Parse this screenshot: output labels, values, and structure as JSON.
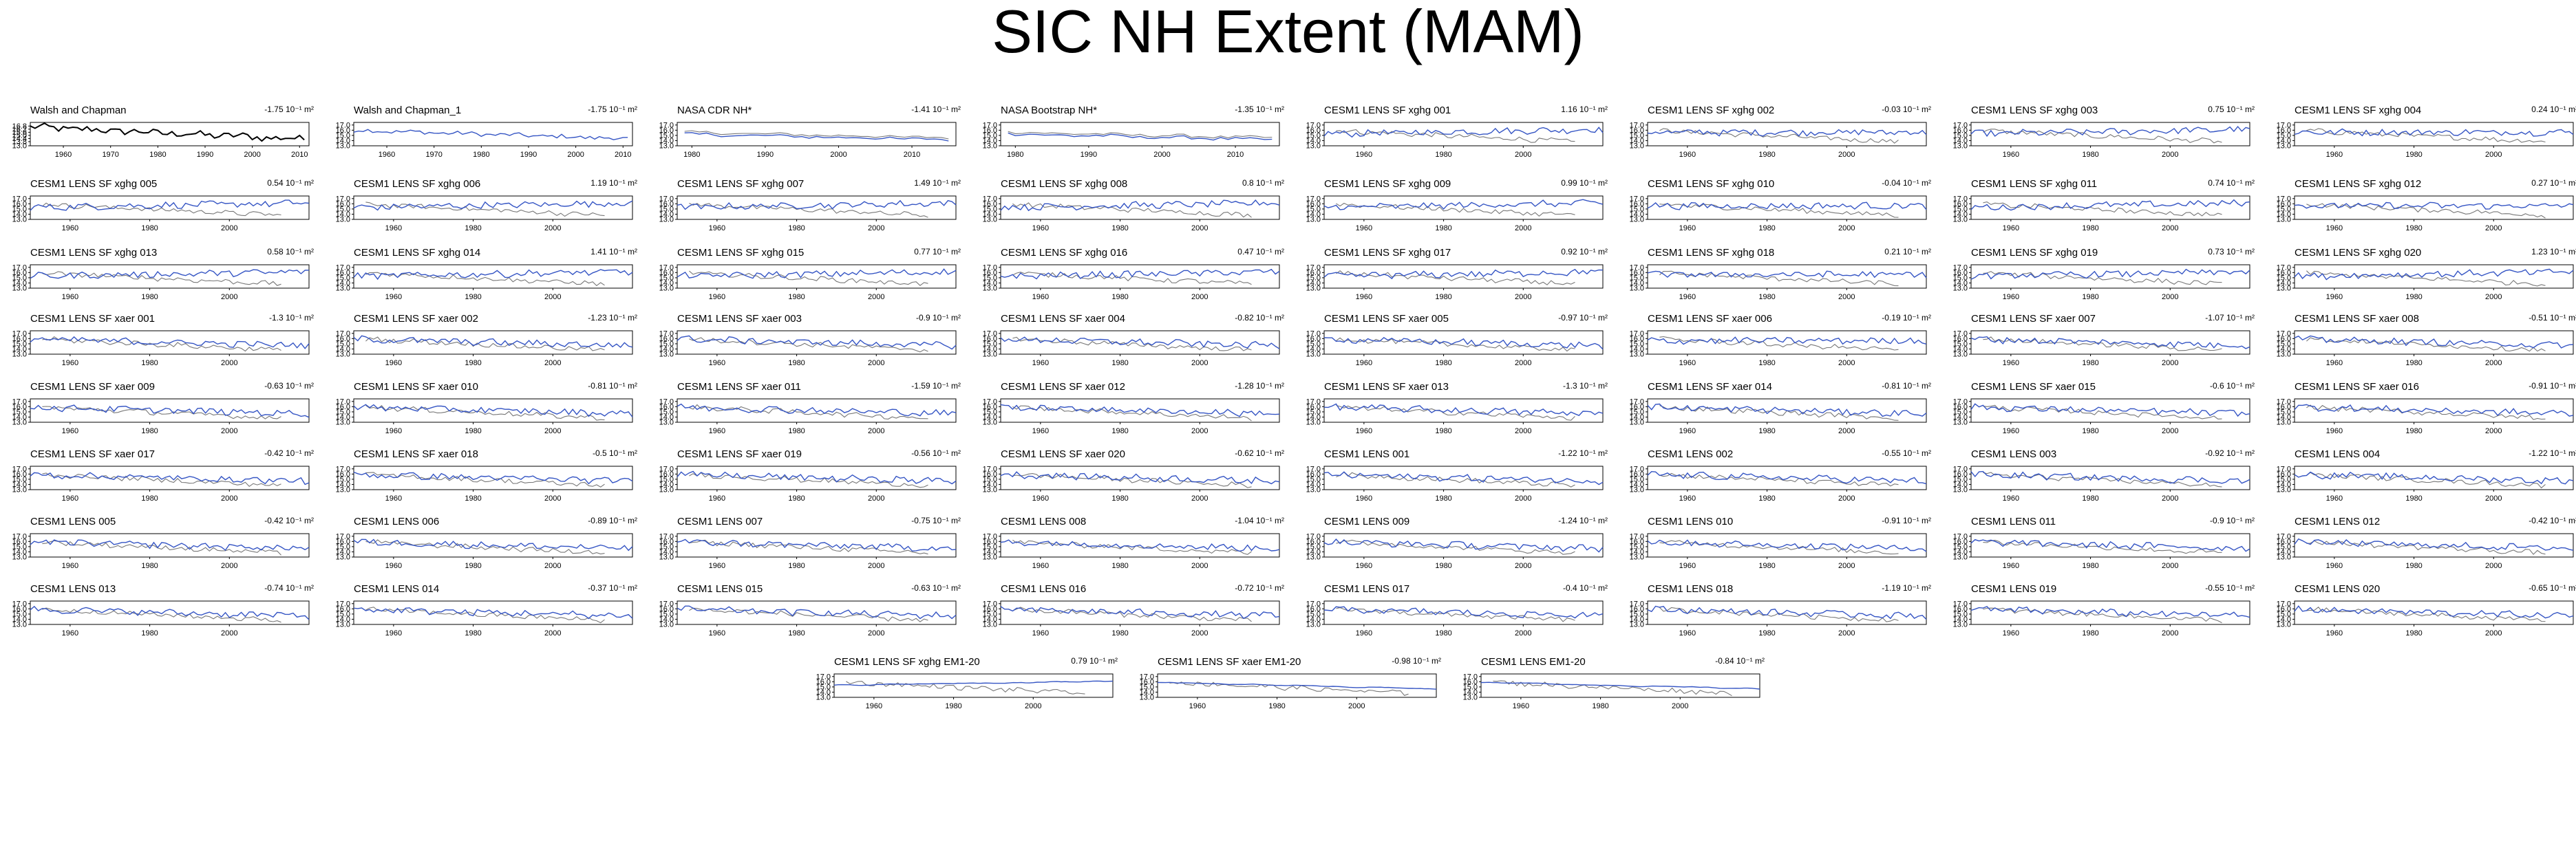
{
  "title": "SIC NH Extent (MAM)",
  "legend_colors": {
    "model": "#3555c4",
    "observed": "#777777",
    "obs_panel": "#000000"
  },
  "trend_unit": "10⁻¹ m²",
  "chart_data": {
    "type": "line",
    "y_tick_labels": [
      "13.0",
      "14.0",
      "15.0",
      "16.0",
      "17.0"
    ],
    "ylim": [
      13.0,
      17.5
    ],
    "panels": [
      {
        "title": "Walsh and Chapman",
        "trend": "-1.75",
        "xticks": [
          1960,
          1970,
          1980,
          1990,
          2000,
          2010
        ],
        "xlim": [
          1953,
          2012
        ],
        "yticks": [
          "13.0",
          "13.8",
          "14.4",
          "15.0",
          "15.6",
          "16.2",
          "16.8"
        ],
        "kind": "obs"
      },
      {
        "title": "Walsh and Chapman_1",
        "trend": "-1.75",
        "xticks": [
          1960,
          1970,
          1980,
          1990,
          2000,
          2010
        ],
        "xlim": [
          1953,
          2012
        ],
        "kind": "single"
      },
      {
        "title": "NASA CDR NH*",
        "trend": "-1.41",
        "xticks": [
          1980,
          1990,
          2000,
          2010
        ],
        "xlim": [
          1978,
          2016
        ],
        "kind": "pair"
      },
      {
        "title": "NASA Bootstrap NH*",
        "trend": "-1.35",
        "xticks": [
          1980,
          1990,
          2000,
          2010
        ],
        "xlim": [
          1978,
          2016
        ],
        "kind": "pair"
      },
      {
        "title": "CESM1 LENS SF xghg 001",
        "trend": "1.16",
        "kind": "model",
        "tr": 1
      },
      {
        "title": "CESM1 LENS SF xghg 002",
        "trend": "-0.03",
        "kind": "model",
        "tr": 0
      },
      {
        "title": "CESM1 LENS SF xghg 003",
        "trend": "0.75",
        "kind": "model",
        "tr": 1
      },
      {
        "title": "CESM1 LENS SF xghg 004",
        "trend": "0.24",
        "kind": "model",
        "tr": 0
      },
      {
        "title": "CESM1 LENS SF xghg 005",
        "trend": "0.54",
        "kind": "model",
        "tr": 1
      },
      {
        "title": "CESM1 LENS SF xghg 006",
        "trend": "1.19",
        "kind": "model",
        "tr": 1
      },
      {
        "title": "CESM1 LENS SF xghg 007",
        "trend": "1.49",
        "kind": "model",
        "tr": 1
      },
      {
        "title": "CESM1 LENS SF xghg 008",
        "trend": "0.8",
        "kind": "model",
        "tr": 1
      },
      {
        "title": "CESM1 LENS SF xghg 009",
        "trend": "0.99",
        "kind": "model",
        "tr": 1
      },
      {
        "title": "CESM1 LENS SF xghg 010",
        "trend": "-0.04",
        "kind": "model",
        "tr": 0
      },
      {
        "title": "CESM1 LENS SF xghg 011",
        "trend": "0.74",
        "kind": "model",
        "tr": 1
      },
      {
        "title": "CESM1 LENS SF xghg 012",
        "trend": "0.27",
        "kind": "model",
        "tr": 0
      },
      {
        "title": "CESM1 LENS SF xghg 013",
        "trend": "0.58",
        "kind": "model",
        "tr": 1
      },
      {
        "title": "CESM1 LENS SF xghg 014",
        "trend": "1.41",
        "kind": "model",
        "tr": 1
      },
      {
        "title": "CESM1 LENS SF xghg 015",
        "trend": "0.77",
        "kind": "model",
        "tr": 1
      },
      {
        "title": "CESM1 LENS SF xghg 016",
        "trend": "0.47",
        "kind": "model",
        "tr": 1
      },
      {
        "title": "CESM1 LENS SF xghg 017",
        "trend": "0.92",
        "kind": "model",
        "tr": 1
      },
      {
        "title": "CESM1 LENS SF xghg 018",
        "trend": "0.21",
        "kind": "model",
        "tr": 0
      },
      {
        "title": "CESM1 LENS SF xghg 019",
        "trend": "0.73",
        "kind": "model",
        "tr": 1
      },
      {
        "title": "CESM1 LENS SF xghg 020",
        "trend": "1.23",
        "kind": "model",
        "tr": 1
      },
      {
        "title": "CESM1 LENS SF xaer 001",
        "trend": "-1.3",
        "kind": "model",
        "tr": -1
      },
      {
        "title": "CESM1 LENS SF xaer 002",
        "trend": "-1.23",
        "kind": "model",
        "tr": -1
      },
      {
        "title": "CESM1 LENS SF xaer 003",
        "trend": "-0.9",
        "kind": "model",
        "tr": -1
      },
      {
        "title": "CESM1 LENS SF xaer 004",
        "trend": "-0.82",
        "kind": "model",
        "tr": -1
      },
      {
        "title": "CESM1 LENS SF xaer 005",
        "trend": "-0.97",
        "kind": "model",
        "tr": -1
      },
      {
        "title": "CESM1 LENS SF xaer 006",
        "trend": "-0.19",
        "kind": "model",
        "tr": 0
      },
      {
        "title": "CESM1 LENS SF xaer 007",
        "trend": "-1.07",
        "kind": "model",
        "tr": -1
      },
      {
        "title": "CESM1 LENS SF xaer 008",
        "trend": "-0.51",
        "kind": "model",
        "tr": -1
      },
      {
        "title": "CESM1 LENS SF xaer 009",
        "trend": "-0.63",
        "kind": "model",
        "tr": -1
      },
      {
        "title": "CESM1 LENS SF xaer 010",
        "trend": "-0.81",
        "kind": "model",
        "tr": -1
      },
      {
        "title": "CESM1 LENS SF xaer 011",
        "trend": "-1.59",
        "kind": "model",
        "tr": -1
      },
      {
        "title": "CESM1 LENS SF xaer 012",
        "trend": "-1.28",
        "kind": "model",
        "tr": -1
      },
      {
        "title": "CESM1 LENS SF xaer 013",
        "trend": "-1.3",
        "kind": "model",
        "tr": -1
      },
      {
        "title": "CESM1 LENS SF xaer 014",
        "trend": "-0.81",
        "kind": "model",
        "tr": -1
      },
      {
        "title": "CESM1 LENS SF xaer 015",
        "trend": "-0.6",
        "kind": "model",
        "tr": -1
      },
      {
        "title": "CESM1 LENS SF xaer 016",
        "trend": "-0.91",
        "kind": "model",
        "tr": -1
      },
      {
        "title": "CESM1 LENS SF xaer 017",
        "trend": "-0.42",
        "kind": "model",
        "tr": -1
      },
      {
        "title": "CESM1 LENS SF xaer 018",
        "trend": "-0.5",
        "kind": "model",
        "tr": -1
      },
      {
        "title": "CESM1 LENS SF xaer 019",
        "trend": "-0.56",
        "kind": "model",
        "tr": -1
      },
      {
        "title": "CESM1 LENS SF xaer 020",
        "trend": "-0.62",
        "kind": "model",
        "tr": -1
      },
      {
        "title": "CESM1 LENS 001",
        "trend": "-1.22",
        "kind": "model",
        "tr": -1
      },
      {
        "title": "CESM1 LENS 002",
        "trend": "-0.55",
        "kind": "model",
        "tr": -1
      },
      {
        "title": "CESM1 LENS 003",
        "trend": "-0.92",
        "kind": "model",
        "tr": -1
      },
      {
        "title": "CESM1 LENS 004",
        "trend": "-1.22",
        "kind": "model",
        "tr": -1
      },
      {
        "title": "CESM1 LENS 005",
        "trend": "-0.42",
        "kind": "model",
        "tr": -1
      },
      {
        "title": "CESM1 LENS 006",
        "trend": "-0.89",
        "kind": "model",
        "tr": -1
      },
      {
        "title": "CESM1 LENS 007",
        "trend": "-0.75",
        "kind": "model",
        "tr": -1
      },
      {
        "title": "CESM1 LENS 008",
        "trend": "-1.04",
        "kind": "model",
        "tr": -1
      },
      {
        "title": "CESM1 LENS 009",
        "trend": "-1.24",
        "kind": "model",
        "tr": -1
      },
      {
        "title": "CESM1 LENS 010",
        "trend": "-0.91",
        "kind": "model",
        "tr": -1
      },
      {
        "title": "CESM1 LENS 011",
        "trend": "-0.9",
        "kind": "model",
        "tr": -1
      },
      {
        "title": "CESM1 LENS 012",
        "trend": "-0.42",
        "kind": "model",
        "tr": -1
      },
      {
        "title": "CESM1 LENS 013",
        "trend": "-0.74",
        "kind": "model",
        "tr": -1
      },
      {
        "title": "CESM1 LENS 014",
        "trend": "-0.37",
        "kind": "model",
        "tr": -1
      },
      {
        "title": "CESM1 LENS 015",
        "trend": "-0.63",
        "kind": "model",
        "tr": -1
      },
      {
        "title": "CESM1 LENS 016",
        "trend": "-0.72",
        "kind": "model",
        "tr": -1
      },
      {
        "title": "CESM1 LENS 017",
        "trend": "-0.4",
        "kind": "model",
        "tr": -1
      },
      {
        "title": "CESM1 LENS 018",
        "trend": "-1.19",
        "kind": "model",
        "tr": -1
      },
      {
        "title": "CESM1 LENS 019",
        "trend": "-0.55",
        "kind": "model",
        "tr": -1
      },
      {
        "title": "CESM1 LENS 020",
        "trend": "-0.65",
        "kind": "model",
        "tr": -1
      },
      {
        "title": "CESM1 LENS SF xghg EM1-20",
        "trend": "0.79",
        "kind": "model",
        "tr": 1,
        "smooth": true
      },
      {
        "title": "CESM1 LENS SF xaer EM1-20",
        "trend": "-0.98",
        "kind": "model",
        "tr": -1,
        "smooth": true
      },
      {
        "title": "CESM1 LENS EM1-20",
        "trend": "-0.84",
        "kind": "model",
        "tr": -1,
        "smooth": true
      }
    ],
    "model_xticks": [
      1960,
      1980,
      2000
    ],
    "model_xlim": [
      1950,
      2020
    ],
    "obs_xlim": [
      1953,
      2014
    ]
  }
}
